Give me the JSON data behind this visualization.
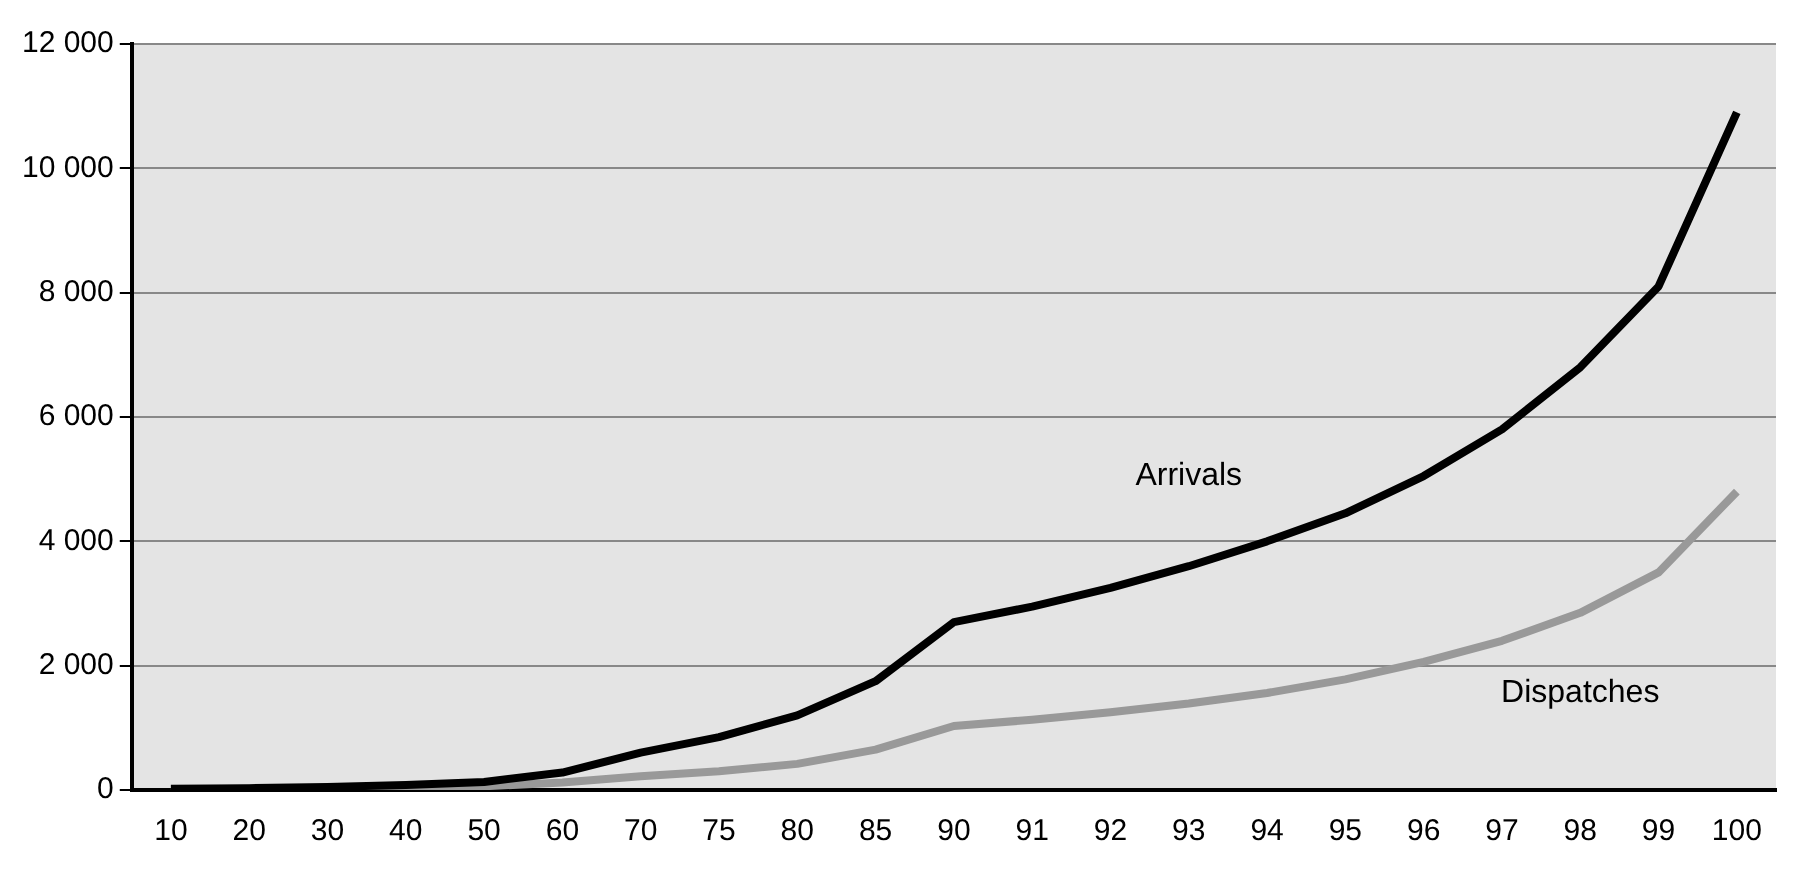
{
  "chart_data": {
    "type": "line",
    "categories": [
      "10",
      "20",
      "30",
      "40",
      "50",
      "60",
      "70",
      "75",
      "80",
      "85",
      "90",
      "91",
      "92",
      "93",
      "94",
      "95",
      "96",
      "97",
      "98",
      "99",
      "100"
    ],
    "series": [
      {
        "name": "Arrivals",
        "color": "#000000",
        "values": [
          20,
          30,
          50,
          80,
          130,
          280,
          600,
          850,
          1200,
          1750,
          2700,
          2950,
          3250,
          3600,
          4000,
          4450,
          5050,
          5800,
          6800,
          8100,
          10900
        ]
      },
      {
        "name": "Dispatches",
        "color": "#999999",
        "values": [
          10,
          20,
          30,
          40,
          60,
          120,
          220,
          300,
          420,
          650,
          1030,
          1130,
          1250,
          1390,
          1560,
          1780,
          2060,
          2400,
          2850,
          3500,
          4800
        ]
      }
    ],
    "ylim": [
      0,
      12000
    ],
    "yticks": [
      0,
      {
        "value": 2000,
        "label": "2 000"
      },
      {
        "value": 4000,
        "label": "4 000"
      },
      {
        "value": 6000,
        "label": "6 000"
      },
      {
        "value": 8000,
        "label": "8 000"
      },
      {
        "value": 10000,
        "label": "10 000"
      },
      {
        "value": 12000,
        "label": "12 000"
      }
    ],
    "grid": "y",
    "legend": false,
    "marker": "none",
    "line_style": "solid"
  }
}
